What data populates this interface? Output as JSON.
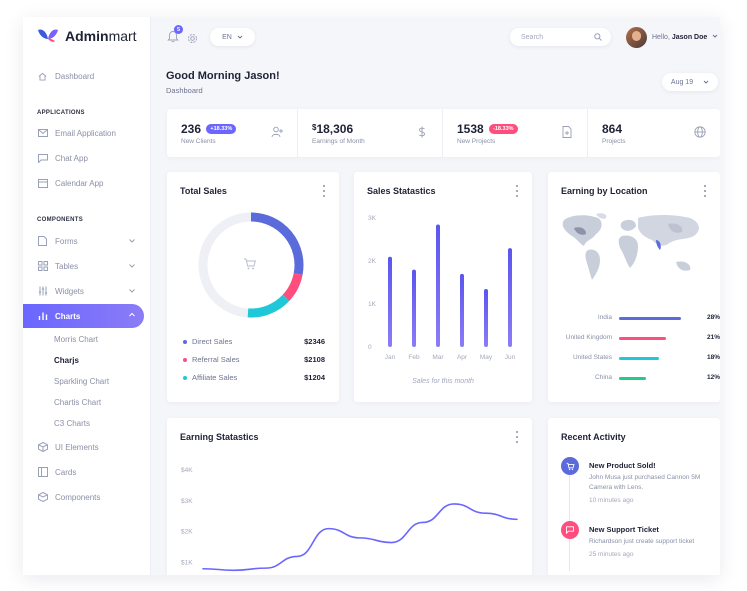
{
  "brand": {
    "name_bold": "Admin",
    "name_light": "mart",
    "colors": [
      "#3b5bdb",
      "#7b61ff",
      "#ff4d7e"
    ]
  },
  "sidebar": {
    "dashboard": "Dashboard",
    "applications_label": "APPLICATIONS",
    "apps": [
      "Email Application",
      "Chat App",
      "Calendar App"
    ],
    "components_label": "COMPONENTS",
    "components": [
      "Forms",
      "Tables",
      "Widgets"
    ],
    "charts": "Charts",
    "chart_subitems": [
      "Morris Chart",
      "Charjs",
      "Sparkling Chart",
      "Chartis Chart",
      "C3 Charts"
    ],
    "after": [
      "UI Elements",
      "Cards",
      "Components"
    ]
  },
  "topbar": {
    "notification_count": "5",
    "language": "EN",
    "search_placeholder": "Search",
    "greeting_prefix": "Hello,",
    "user_name": "Jason Doe"
  },
  "page": {
    "title": "Good Morning Jason!",
    "subtitle": "Dashboard",
    "date_filter": "Aug 19"
  },
  "stats": [
    {
      "value": "236",
      "badge": "+18.33%",
      "label": "New Clients",
      "badge_color": "#6a66ff"
    },
    {
      "currency": "$",
      "value": "18,306",
      "label": "Earnings of Month"
    },
    {
      "value": "1538",
      "badge": "-18.33%",
      "label": "New Projects",
      "badge_color": "#ff4d7e"
    },
    {
      "value": "864",
      "label": "Projects"
    }
  ],
  "total_sales": {
    "title": "Total Sales",
    "items": [
      {
        "name": "Direct Sales",
        "amount": "$2346",
        "color": "#5b6bdb"
      },
      {
        "name": "Referral Sales",
        "amount": "$2108",
        "color": "#ff4d7e"
      },
      {
        "name": "Affiliate Sales",
        "amount": "$1204",
        "color": "#1fc8d8"
      }
    ]
  },
  "sales_stats": {
    "title": "Sales Statastics",
    "caption": "Sales for this month",
    "y_ticks": [
      "3K",
      "2K",
      "1K",
      "0"
    ]
  },
  "earning_location": {
    "title": "Earning by Location",
    "rows": [
      {
        "country": "India",
        "percent": "28%",
        "color": "#5b6bdb",
        "value": 28
      },
      {
        "country": "United Kingdom",
        "percent": "21%",
        "color": "#ff4d7e",
        "value": 21
      },
      {
        "country": "United States",
        "percent": "18%",
        "color": "#1fc8d8",
        "value": 18
      },
      {
        "country": "China",
        "percent": "12%",
        "color": "#22cc88",
        "value": 12
      }
    ]
  },
  "earning_stats": {
    "title": "Earning Statastics",
    "y_ticks": [
      "$4K",
      "$3K",
      "$2K",
      "$1K"
    ]
  },
  "recent_activity": {
    "title": "Recent Activity",
    "items": [
      {
        "title": "New Product Sold!",
        "desc": "John Musa just purchased Cannon 5M Camera with Lens.",
        "time": "10 minutes ago",
        "color": "#5b6bdb"
      },
      {
        "title": "New Support Ticket",
        "desc": "Richardson just create support ticket",
        "time": "25 minutes ago",
        "color": "#ff4d7e"
      }
    ]
  },
  "chart_data": [
    {
      "type": "pie",
      "title": "Total Sales",
      "categories": [
        "Direct Sales",
        "Referral Sales",
        "Affiliate Sales"
      ],
      "values": [
        2346,
        2108,
        1204
      ],
      "arc_fraction": [
        0.28,
        0.09,
        0.14
      ]
    },
    {
      "type": "bar",
      "title": "Sales Statastics",
      "categories": [
        "Jan",
        "Feb",
        "Mar",
        "Apr",
        "May",
        "Jun"
      ],
      "values": [
        2100,
        1800,
        2850,
        1700,
        1350,
        2300
      ],
      "ylim": [
        0,
        3000
      ],
      "xlabel": "Sales for this month"
    },
    {
      "type": "line",
      "title": "Earning Statastics",
      "x": [
        0,
        1,
        2,
        3,
        4,
        5,
        6,
        7,
        8,
        9,
        10
      ],
      "values": [
        800,
        750,
        820,
        1200,
        2100,
        1800,
        1650,
        2300,
        2900,
        2600,
        2400
      ],
      "ylim": [
        500,
        4000
      ],
      "y_ticks": [
        "$4K",
        "$3K",
        "$2K",
        "$1K"
      ]
    }
  ]
}
